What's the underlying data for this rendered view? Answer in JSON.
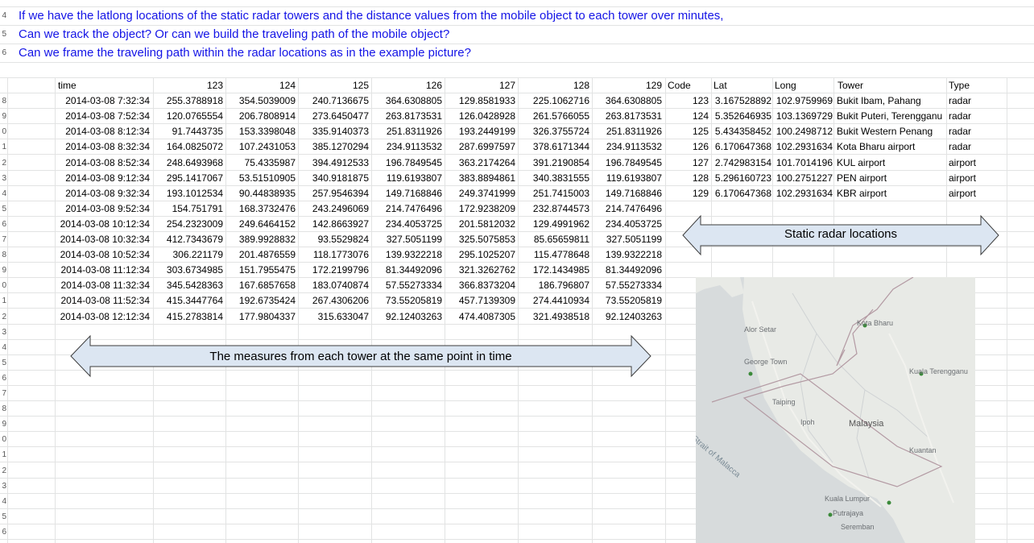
{
  "questions": [
    "If we have the latlong locations of the static radar towers and the distance values from the mobile object to each tower over minutes,",
    "Can we track the object? Or can we build the traveling path of the mobile object?",
    "Can we frame the traveling path within the radar locations as in the example picture?"
  ],
  "row_numbers": [
    "4",
    "5",
    "6",
    "",
    "8",
    "9",
    "0",
    "1",
    "2",
    "3",
    "4",
    "5",
    "6",
    "7",
    "8",
    "9",
    "0",
    "1",
    "2",
    "3",
    "4",
    "5",
    "6",
    "7",
    "8",
    "9",
    "0",
    "1",
    "2",
    "3",
    "4",
    "5",
    "6",
    "7"
  ],
  "measure_table": {
    "headers": [
      "time",
      "123",
      "124",
      "125",
      "126",
      "127",
      "128",
      "129"
    ],
    "rows": [
      [
        "2014-03-08 7:32:34",
        "255.3788918",
        "354.5039009",
        "240.7136675",
        "364.6308805",
        "129.8581933",
        "225.1062716",
        "364.6308805"
      ],
      [
        "2014-03-08 7:52:34",
        "120.0765554",
        "206.7808914",
        "273.6450477",
        "263.8173531",
        "126.0428928",
        "261.5766055",
        "263.8173531"
      ],
      [
        "2014-03-08 8:12:34",
        "91.7443735",
        "153.3398048",
        "335.9140373",
        "251.8311926",
        "193.2449199",
        "326.3755724",
        "251.8311926"
      ],
      [
        "2014-03-08 8:32:34",
        "164.0825072",
        "107.2431053",
        "385.1270294",
        "234.9113532",
        "287.6997597",
        "378.6171344",
        "234.9113532"
      ],
      [
        "2014-03-08 8:52:34",
        "248.6493968",
        "75.4335987",
        "394.4912533",
        "196.7849545",
        "363.2174264",
        "391.2190854",
        "196.7849545"
      ],
      [
        "2014-03-08 9:12:34",
        "295.1417067",
        "53.51510905",
        "340.9181875",
        "119.6193807",
        "383.8894861",
        "340.3831555",
        "119.6193807"
      ],
      [
        "2014-03-08 9:32:34",
        "193.1012534",
        "90.44838935",
        "257.9546394",
        "149.7168846",
        "249.3741999",
        "251.7415003",
        "149.7168846"
      ],
      [
        "2014-03-08 9:52:34",
        "154.751791",
        "168.3732476",
        "243.2496069",
        "214.7476496",
        "172.9238209",
        "232.8744573",
        "214.7476496"
      ],
      [
        "2014-03-08 10:12:34",
        "254.2323009",
        "249.6464152",
        "142.8663927",
        "234.4053725",
        "201.5812032",
        "129.4991962",
        "234.4053725"
      ],
      [
        "2014-03-08 10:32:34",
        "412.7343679",
        "389.9928832",
        "93.5529824",
        "327.5051199",
        "325.5075853",
        "85.65659811",
        "327.5051199"
      ],
      [
        "2014-03-08 10:52:34",
        "306.221179",
        "201.4876559",
        "118.1773076",
        "139.9322218",
        "295.1025207",
        "115.4778648",
        "139.9322218"
      ],
      [
        "2014-03-08 11:12:34",
        "303.6734985",
        "151.7955475",
        "172.2199796",
        "81.34492096",
        "321.3262762",
        "172.1434985",
        "81.34492096"
      ],
      [
        "2014-03-08 11:32:34",
        "345.5428363",
        "167.6857658",
        "183.0740874",
        "57.55273334",
        "366.8373204",
        "186.796807",
        "57.55273334"
      ],
      [
        "2014-03-08 11:52:34",
        "415.3447764",
        "192.6735424",
        "267.4306206",
        "73.55205819",
        "457.7139309",
        "274.4410934",
        "73.55205819"
      ],
      [
        "2014-03-08 12:12:34",
        "415.2783814",
        "177.9804337",
        "315.633047",
        "92.12403263",
        "474.4087305",
        "321.4938518",
        "92.12403263"
      ]
    ]
  },
  "tower_table": {
    "headers": [
      "Code",
      "Lat",
      "Long",
      "Tower",
      "Type"
    ],
    "rows": [
      [
        "123",
        "3.167528892",
        "102.9759969",
        "Bukit Ibam, Pahang",
        "radar"
      ],
      [
        "124",
        "5.352646935",
        "103.1369729",
        "Bukit Puteri, Terengganu",
        "radar"
      ],
      [
        "125",
        "5.434358452",
        "100.2498712",
        "Bukit Western Penang",
        "radar"
      ],
      [
        "126",
        "6.170647368",
        "102.2931634",
        "Kota Bharu airport",
        "radar"
      ],
      [
        "127",
        "2.742983154",
        "101.7014196",
        "KUL airport",
        "airport"
      ],
      [
        "128",
        "5.296160723",
        "100.2751227",
        "PEN airport",
        "airport"
      ],
      [
        "129",
        "6.170647368",
        "102.2931634",
        "KBR airport",
        "airport"
      ]
    ]
  },
  "annotations": {
    "static_label": "Static radar locations",
    "measures_label": "The measures from each tower at the same point in time"
  },
  "map": {
    "country_label": "Malaysia",
    "strait_label": "Strait of Malacca",
    "place_labels": [
      "Alor Setar",
      "George Town",
      "Kota Bharu",
      "Kuala Terengganu",
      "Taiping",
      "Ipoh",
      "Kuantan",
      "Kuala Lumpur",
      "Putrajaya",
      "Seremban"
    ]
  },
  "colors": {
    "question_text": "#1414e6",
    "arrow_fill": "#dce6f2",
    "arrow_stroke": "#3c3c3c",
    "map_background": "#dfe3e1",
    "path_line": "#b39aa3"
  }
}
